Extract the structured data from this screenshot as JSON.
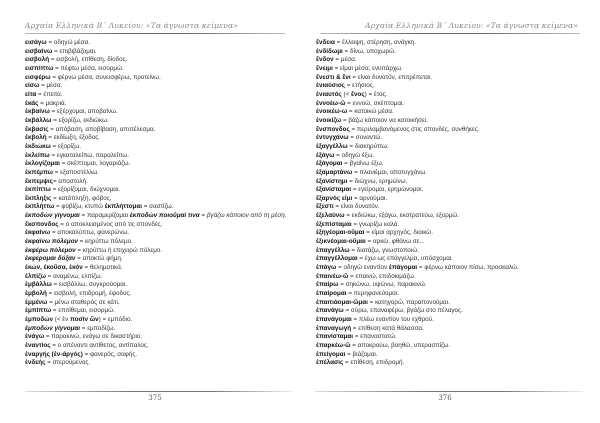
{
  "header": "Αρχαία Ελληνικά Β΄ Λυκείου: «Τα άγνωστα κείμενα»",
  "left_page": {
    "number": "375",
    "entries": [
      [
        [
          "b",
          "εισάγω"
        ],
        [
          "n",
          " = οδηγώ μέσα."
        ]
      ],
      [
        [
          "b",
          "εισβαίνω"
        ],
        [
          "n",
          " = επιβιβάζομαι."
        ]
      ],
      [
        [
          "b",
          "εισβολή"
        ],
        [
          "n",
          " = εισβολή, επίθεση, δίοδος."
        ]
      ],
      [
        [
          "b",
          "εισπίπτω"
        ],
        [
          "n",
          " = πέφτω μέσα, εισορμώ."
        ]
      ],
      [
        [
          "b",
          "εισφέρω"
        ],
        [
          "n",
          " = φέρνω μέσα, συνεισφέρω, προτείνω."
        ]
      ],
      [
        [
          "b",
          "είσω"
        ],
        [
          "n",
          " = μέσα."
        ]
      ],
      [
        [
          "b",
          "είτα"
        ],
        [
          "n",
          " = έπειτα."
        ]
      ],
      [
        [
          "b",
          "ἑκάς"
        ],
        [
          "n",
          " = μακριά."
        ]
      ],
      [
        [
          "b",
          "ἐκβαίνω"
        ],
        [
          "n",
          " = εξέρχομαι, αποβαίνω."
        ]
      ],
      [
        [
          "b",
          "ἐκβάλλω"
        ],
        [
          "n",
          " = εξορίζω, εκδιώκω."
        ]
      ],
      [
        [
          "b",
          "ἔκβασις"
        ],
        [
          "n",
          " = απόβαση, αποβίβαση, αποτέλεσμα."
        ]
      ],
      [
        [
          "b",
          "ἐκβολή"
        ],
        [
          "n",
          " = εκδίωξη, έξοδος."
        ]
      ],
      [
        [
          "b",
          "ἐκδιώκω"
        ],
        [
          "n",
          " = εξορίζω."
        ]
      ],
      [
        [
          "b",
          "ἐκλείπω"
        ],
        [
          "n",
          " = εγκαταλείπω, παραλείπω."
        ]
      ],
      [
        [
          "b",
          "ἐκλογίζομαι"
        ],
        [
          "n",
          " = σκέπτομαι, λογαριάζω."
        ]
      ],
      [
        [
          "b",
          "ἐκπέμπω"
        ],
        [
          "n",
          " = εξαποστέλλω."
        ]
      ],
      [
        [
          "b",
          "ἔκπεμψις"
        ],
        [
          "n",
          "= αποστολή."
        ]
      ],
      [
        [
          "b",
          "ἐκπίπτω"
        ],
        [
          "n",
          " = εξορίζομαι, διώχνομαι."
        ]
      ],
      [
        [
          "b",
          "ἔκπληξις"
        ],
        [
          "n",
          " = κατάπληξη, φόβος."
        ]
      ],
      [
        [
          "b",
          "ἐκπλήττω"
        ],
        [
          "n",
          " = φοβίζω, κτυπώ "
        ],
        [
          "b",
          "ἐκπλήττομαι"
        ],
        [
          "n",
          " = σαστίζω."
        ]
      ],
      [
        [
          "bi",
          "ἐκποδὼν γίγνομαι"
        ],
        [
          "n",
          " = παραμερίζομαι "
        ],
        [
          "bi",
          "ἐκποδὼν ποιοῦμαί τινα"
        ],
        [
          "n",
          " = "
        ],
        [
          "i",
          "βγάζω κάποιον από τη μέση."
        ]
      ],
      [
        [
          "b",
          "ἔκσπονδος"
        ],
        [
          "n",
          " = ο αποκλεισμένος από τις σπονδές."
        ]
      ],
      [
        [
          "b",
          "ἐκφαίνω"
        ],
        [
          "n",
          " = αποκαλύπτω, φανερώνω."
        ]
      ],
      [
        [
          "bi",
          "ἐκφαίνω πόλεμον"
        ],
        [
          "n",
          " = κηρύττω πόλεμο."
        ]
      ],
      [
        [
          "bi",
          "ἐκφέρω πόλεμον"
        ],
        [
          "n",
          " = κηρύττω ή επιχειρώ πόλεμο."
        ]
      ],
      [
        [
          "bi",
          "ἐκφέρομαι δόξαν"
        ],
        [
          "n",
          " = αποκτώ φήμη."
        ]
      ],
      [
        [
          "b",
          "ἑκών, ἑκοῦσα, ἑκόν"
        ],
        [
          "n",
          " = θεληματικά."
        ]
      ],
      [
        [
          "b",
          "ἐλπίζω"
        ],
        [
          "n",
          " = αναμένω, ελπίζω."
        ]
      ],
      [
        [
          "b",
          "ἐμβάλλω"
        ],
        [
          "n",
          " = εισβάλλω, συγκρούομαι."
        ]
      ],
      [
        [
          "b",
          "ἐμβολή"
        ],
        [
          "n",
          " = εισβολή, επιδρομή, έφοδος."
        ]
      ],
      [
        [
          "b",
          "ἐμμένω"
        ],
        [
          "n",
          " = μένω σταθερός σε κάτι."
        ]
      ],
      [
        [
          "b",
          "ἐμπίπτω"
        ],
        [
          "n",
          " = επιτίθεμαι, εισορμώ."
        ]
      ],
      [
        [
          "b",
          "ἐμποδών"
        ],
        [
          "n",
          " (< ἐν "
        ],
        [
          "b",
          "ποσὶν ὤν"
        ],
        [
          "n",
          ") = εμπόδιο."
        ]
      ],
      [
        [
          "bi",
          "ἐμποδὼν γίγνομαι"
        ],
        [
          "n",
          " = εμποδίζω."
        ]
      ],
      [
        [
          "b",
          "ἐνάγω"
        ],
        [
          "n",
          " = παρακινώ, ενάγω σε δικαστήριο."
        ]
      ],
      [
        [
          "b",
          "ἐναντίος"
        ],
        [
          "n",
          " = ο απέναντι αντίθετος, αντίπαλος."
        ]
      ],
      [
        [
          "b",
          "ἐναργής (ἐν-ἀργός)"
        ],
        [
          "n",
          " = φανερός, σαφής."
        ]
      ],
      [
        [
          "b",
          "ἐνδεής"
        ],
        [
          "n",
          " = στερούμενος."
        ]
      ]
    ]
  },
  "right_page": {
    "number": "376",
    "entries": [
      [
        [
          "b",
          "ἔνδεια"
        ],
        [
          "n",
          " = έλλειψη, στέρηση, ανάγκη."
        ]
      ],
      [
        [
          "b",
          "ἐνδίδωμι"
        ],
        [
          "n",
          " = δίνω, υποχωρώ."
        ]
      ],
      [
        [
          "b",
          "ἔνδον"
        ],
        [
          "n",
          " = μέσα."
        ]
      ],
      [
        [
          "b",
          "ἔνειμι"
        ],
        [
          "n",
          " = είμαι μέσα, ενυπάρχω."
        ]
      ],
      [
        [
          "b",
          "ἔνεστι & ἔνι"
        ],
        [
          "n",
          " = είναι δυνατόν, επιτρέπεται."
        ]
      ],
      [
        [
          "b",
          "ἐνιαύσιος"
        ],
        [
          "n",
          " = ετήσιος."
        ]
      ],
      [
        [
          "b",
          "ἐνιαυτός"
        ],
        [
          "n",
          " (< "
        ],
        [
          "b",
          "ἔνος"
        ],
        [
          "n",
          ") = έτος."
        ]
      ],
      [
        [
          "b",
          "ἐννοέω-ῶ"
        ],
        [
          "n",
          " = εννοώ, σκέπτομαι."
        ]
      ],
      [
        [
          "b",
          "ἐνοικέω-ω"
        ],
        [
          "n",
          " = κατοικώ μέσα."
        ]
      ],
      [
        [
          "b",
          "ἐνοικίζω"
        ],
        [
          "n",
          " = βάζω κάποιον να κατοικήσει."
        ]
      ],
      [
        [
          "b",
          "ἔνσπονδος"
        ],
        [
          "n",
          " = περιλαμβανόμενος στις σπονδές, συνθήκες."
        ]
      ],
      [
        [
          "b",
          "ἐντυγχάνω"
        ],
        [
          "n",
          " = συναντώ."
        ]
      ],
      [
        [
          "b",
          "ἐξαγγέλλω"
        ],
        [
          "n",
          " = διακηρύττω."
        ]
      ],
      [
        [
          "b",
          "ἐξάγω"
        ],
        [
          "n",
          " = οδηγώ έξω."
        ]
      ],
      [
        [
          "b",
          "ἐξάγομαι"
        ],
        [
          "n",
          " = βγαίνω έξω."
        ]
      ],
      [
        [
          "b",
          "ἐξαμαρτάνω"
        ],
        [
          "n",
          " = πλανιέμαι, αποτυγχάνω."
        ]
      ],
      [
        [
          "b",
          "ἐξανίστημι"
        ],
        [
          "n",
          " = διώχνω, ερημώνω."
        ]
      ],
      [
        [
          "b",
          "ἐξανίσταμαι"
        ],
        [
          "n",
          " = εγείρομαι, ερημώνομαι."
        ]
      ],
      [
        [
          "b",
          "ἔξαρνός εἰμι"
        ],
        [
          "n",
          " = αρνούμαι."
        ]
      ],
      [
        [
          "b",
          "ἔξεστι"
        ],
        [
          "n",
          " = είναι δυνατόν."
        ]
      ],
      [
        [
          "b",
          "ἐξελαύνω"
        ],
        [
          "n",
          " = εκδιώκω, εξάγω, εκστρατεύω, εξορμώ."
        ]
      ],
      [
        [
          "b",
          "ἐξεπίσταμαι"
        ],
        [
          "n",
          " = γνωρίζω καλά."
        ]
      ],
      [
        [
          "b",
          "ἐξηγέομαι-οῦμαι"
        ],
        [
          "n",
          " = είμαι αρχηγός, διοικώ."
        ]
      ],
      [
        [
          "b",
          "ἐξικνέομαι-οῦμαι"
        ],
        [
          "n",
          " = αρκώ, φθάνω σε..."
        ]
      ],
      [
        [
          "b",
          "ἐπαγγέλλω"
        ],
        [
          "n",
          " = διατάζω, γνωστοποιώ."
        ]
      ],
      [
        [
          "b",
          "ἐπαγγέλλομαι"
        ],
        [
          "n",
          " = έχω ως επάγγελμα, υπόσχομαι."
        ]
      ],
      [
        [
          "b",
          "ἐπάγω"
        ],
        [
          "n",
          " = οδηγώ εναντίον "
        ],
        [
          "b",
          "ἐπάγομαι"
        ],
        [
          "n",
          " = φέρνω κάποιον πίσω, προσκαλώ."
        ]
      ],
      [
        [
          "b",
          "ἐπαινέω-ῶ"
        ],
        [
          "n",
          " = επαινώ, επιδοκιμάζω."
        ]
      ],
      [
        [
          "b",
          "ἐπαίρω"
        ],
        [
          "n",
          " = σηκώνω, υψώνω, παρακινώ."
        ]
      ],
      [
        [
          "b",
          "ἐπαίρομαι"
        ],
        [
          "n",
          " = περηφανεύομαι."
        ]
      ],
      [
        [
          "b",
          "ἐπαιτιάομαι-ῶμαι"
        ],
        [
          "n",
          " = κατηγορώ, παραπονούμαι."
        ]
      ],
      [
        [
          "b",
          "ἐπανάγω"
        ],
        [
          "n",
          " = σύρω, επαναφέρω, βγάζω στο πέλαγος."
        ]
      ],
      [
        [
          "b",
          "ἐπανάγομαι"
        ],
        [
          "n",
          " = πλέω εναντίον του εχθρού."
        ]
      ],
      [
        [
          "b",
          "ἐπαναγωγή"
        ],
        [
          "n",
          " = επίθεση κατά θάλασσα."
        ]
      ],
      [
        [
          "b",
          "ἐπανίσταμαι"
        ],
        [
          "n",
          " = επαναστατώ."
        ]
      ],
      [
        [
          "b",
          "ἐπαρκέω-ῶ"
        ],
        [
          "n",
          " = αποκρούω, βοηθώ, υπερασπίζω."
        ]
      ],
      [
        [
          "b",
          "ἐπείγομαι"
        ],
        [
          "n",
          " = βιάζομαι."
        ]
      ],
      [
        [
          "b",
          "ἐπέλασις"
        ],
        [
          "n",
          " = επίθεση, επιδρομή."
        ]
      ]
    ]
  }
}
